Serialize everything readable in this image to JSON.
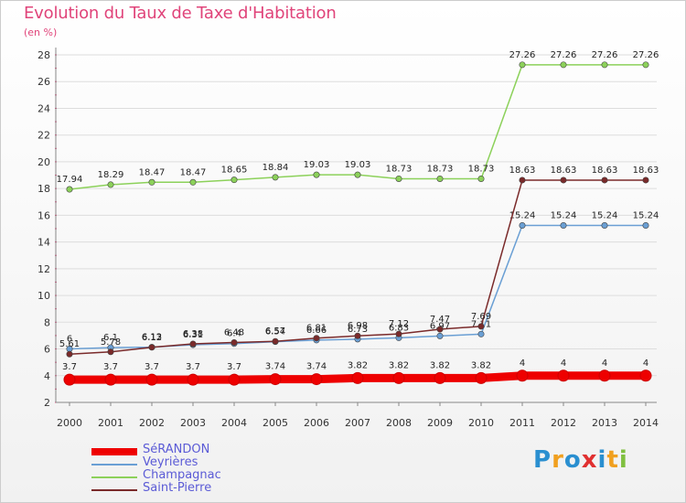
{
  "header": {
    "title": "Evolution du Taux de Taxe d'Habitation",
    "unit": "(en %)"
  },
  "brand": {
    "logo_letters": [
      "P",
      "r",
      "o",
      "x",
      "i",
      "t",
      "i"
    ],
    "logo_colors": [
      "#2a8fd0",
      "#f0a020",
      "#2a8fd0",
      "#e03030",
      "#2a8fd0",
      "#f0a020",
      "#80c040"
    ]
  },
  "chart_data": {
    "type": "line",
    "title": "Evolution du Taux de Taxe d'Habitation",
    "ylabel": "(en %)",
    "xlabel": "",
    "x": [
      2000,
      2001,
      2002,
      2003,
      2004,
      2005,
      2006,
      2007,
      2008,
      2009,
      2010,
      2011,
      2012,
      2013,
      2014
    ],
    "ylim": [
      2,
      28
    ],
    "yticks": [
      2,
      4,
      6,
      8,
      10,
      12,
      14,
      16,
      18,
      20,
      22,
      24,
      26,
      28
    ],
    "grid": "horizontal",
    "legend_position": "bottom-left",
    "series": [
      {
        "name": "SéRANDON",
        "color": "#ee0000",
        "emphasis": true,
        "values": [
          3.7,
          3.7,
          3.7,
          3.7,
          3.7,
          3.74,
          3.74,
          3.82,
          3.82,
          3.82,
          3.82,
          4,
          4,
          4,
          4
        ],
        "labels": [
          "3.7",
          "3.7",
          "3.7",
          "3.7",
          "3.7",
          "3.74",
          "3.74",
          "3.82",
          "3.82",
          "3.82",
          "3.82",
          "4",
          "4",
          "4",
          "4"
        ]
      },
      {
        "name": "Veyrières",
        "color": "#6a9fd4",
        "emphasis": false,
        "values": [
          6,
          6.1,
          6.13,
          6.31,
          6.4,
          6.54,
          6.66,
          6.73,
          6.83,
          6.97,
          7.11,
          15.24,
          15.24,
          15.24,
          15.24
        ],
        "labels": [
          "6",
          "6.1",
          "6.13",
          "6.31",
          "6.4",
          "6.54",
          "6.66",
          "6.73",
          "6.83",
          "6.97",
          "7.11",
          "15.24",
          "15.24",
          "15.24",
          "15.24"
        ]
      },
      {
        "name": "Champagnac",
        "color": "#8cd15a",
        "emphasis": false,
        "values": [
          17.94,
          18.29,
          18.47,
          18.47,
          18.65,
          18.84,
          19.03,
          19.03,
          18.73,
          18.73,
          18.73,
          27.26,
          27.26,
          27.26,
          27.26
        ],
        "labels": [
          "17.94",
          "18.29",
          "18.47",
          "18.47",
          "18.65",
          "18.84",
          "19.03",
          "19.03",
          "18.73",
          "18.73",
          "18.73",
          "27.26",
          "27.26",
          "27.26",
          "27.26"
        ]
      },
      {
        "name": "Saint-Pierre",
        "color": "#7a2a2a",
        "emphasis": false,
        "values": [
          5.61,
          5.78,
          6.12,
          6.38,
          6.48,
          6.57,
          6.81,
          6.98,
          7.12,
          7.47,
          7.69,
          18.63,
          18.63,
          18.63,
          18.63
        ],
        "labels": [
          "5.61",
          "5.78",
          "6.12",
          "6.38",
          "6.48",
          "6.57",
          "6.81",
          "6.98",
          "7.12",
          "7.47",
          "7.69",
          "18.63",
          "18.63",
          "18.63",
          "18.63"
        ]
      }
    ]
  }
}
